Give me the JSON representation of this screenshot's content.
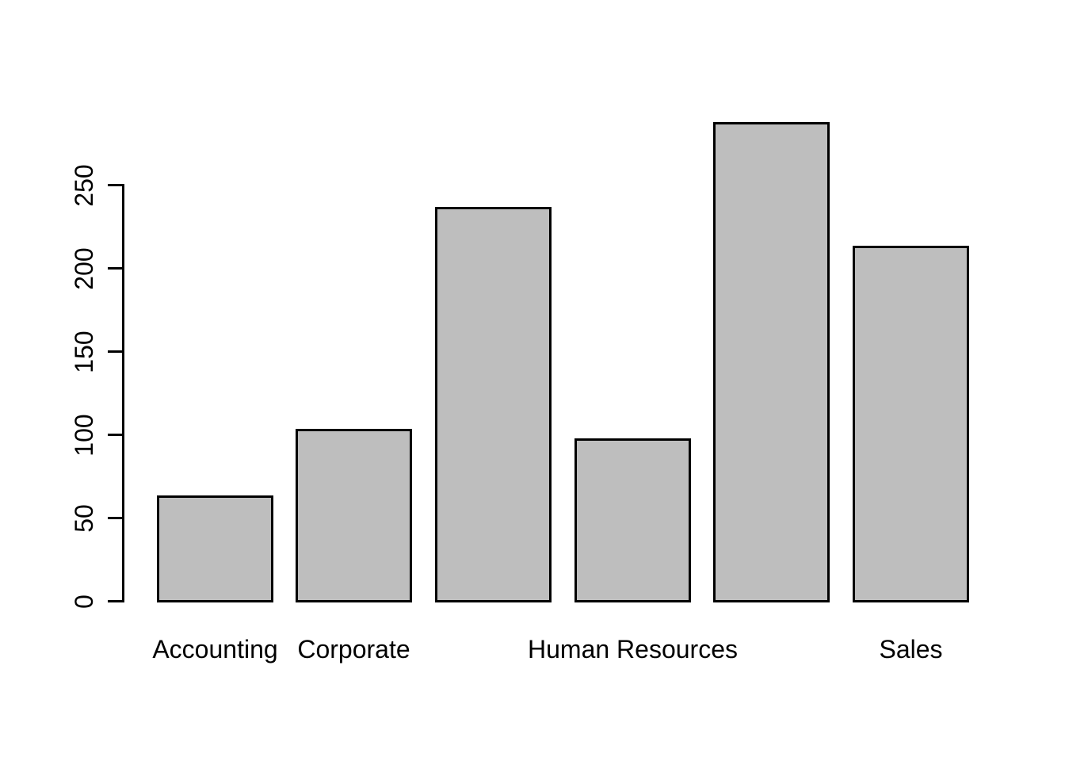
{
  "chart_data": {
    "type": "bar",
    "title": "",
    "xlabel": "",
    "ylabel": "",
    "bars": [
      {
        "label": "Accounting",
        "value": 63
      },
      {
        "label": "Corporate",
        "value": 103
      },
      {
        "label": "",
        "value": 236
      },
      {
        "label": "Human Resources",
        "value": 97
      },
      {
        "label": "",
        "value": 287
      },
      {
        "label": "Sales",
        "value": 213
      }
    ],
    "y_ticks": [
      0,
      50,
      100,
      150,
      200,
      250
    ],
    "ylim": [
      0,
      290
    ],
    "grid": false,
    "legend": "none"
  },
  "colors": {
    "background": "#FFFFFF",
    "bar_fill": "#BEBEBE",
    "bar_border": "#000000",
    "axis": "#000000",
    "text": "#000000"
  }
}
